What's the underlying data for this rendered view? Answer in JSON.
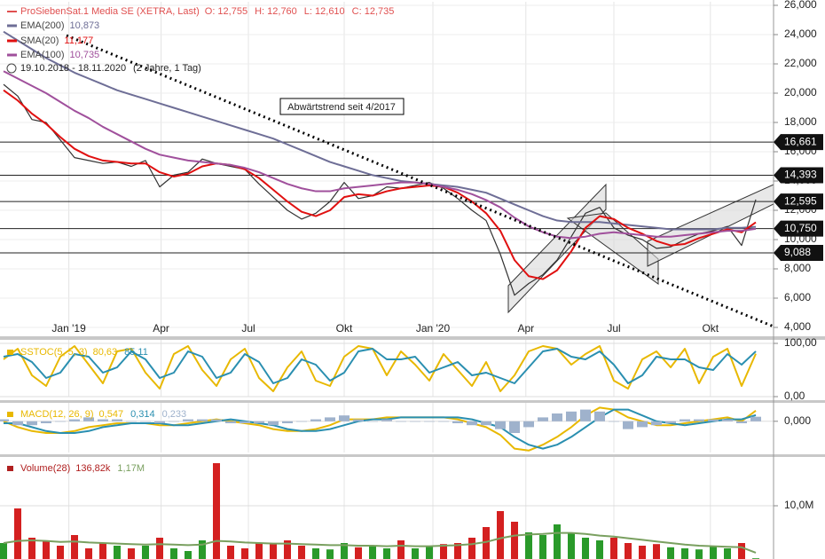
{
  "chart_data": [
    {
      "type": "line",
      "date_range": "19.10.2018 - 18.11.2020",
      "period": "(2 Jahre, 1 Tag)",
      "ohlc": [
        "O: 12,755",
        "H: 12,760",
        "L: 12,610",
        "C: 12,735"
      ],
      "annotation": "Abwärtstrend seit 4/2017",
      "ylim": [
        4,
        26
      ],
      "yticks": [
        {
          "value": 4,
          "label": "4,000"
        },
        {
          "value": 6,
          "label": "6,000"
        },
        {
          "value": 8,
          "label": "8,000"
        },
        {
          "value": 10,
          "label": "10,000"
        },
        {
          "value": 12,
          "label": "12,000"
        },
        {
          "value": 14,
          "label": "14,000"
        },
        {
          "value": 16,
          "label": "16,000"
        },
        {
          "value": 18,
          "label": "18,000"
        },
        {
          "value": 20,
          "label": "20,000"
        },
        {
          "value": 22,
          "label": "22,000"
        },
        {
          "value": 24,
          "label": "24,000"
        },
        {
          "value": 26,
          "label": "26,000"
        }
      ],
      "xticks": [
        {
          "value": 4.6,
          "label": "Jan '19"
        },
        {
          "value": 11.1,
          "label": "Apr"
        },
        {
          "value": 17.25,
          "label": "Jul"
        },
        {
          "value": 24,
          "label": "Okt"
        },
        {
          "value": 30.25,
          "label": "Jan '20"
        },
        {
          "value": 36.8,
          "label": "Apr"
        },
        {
          "value": 43,
          "label": "Jul"
        },
        {
          "value": 49.8,
          "label": "Okt"
        }
      ],
      "grid": true,
      "levels": [
        {
          "value": 16.661,
          "label": "16,661"
        },
        {
          "value": 14.393,
          "label": "14,393"
        },
        {
          "value": 12.595,
          "label": "12,595"
        },
        {
          "value": 10.75,
          "label": "10,750"
        },
        {
          "value": 9.088,
          "label": "9,088"
        }
      ],
      "series": [
        {
          "name": "ProSiebenSat.1 Media SE (XETRA, Last)",
          "color": "#333333",
          "values": [
            20.6,
            19.8,
            18.2,
            18.0,
            16.8,
            15.6,
            15.4,
            15.2,
            15.3,
            15.0,
            15.4,
            13.6,
            14.4,
            14.6,
            15.5,
            15.2,
            15.0,
            14.8,
            13.8,
            12.9,
            12.0,
            11.4,
            11.8,
            12.6,
            13.9,
            12.8,
            13.0,
            13.6,
            13.5,
            13.7,
            13.9,
            13.5,
            12.8,
            12.0,
            11.3,
            9.0,
            6.2,
            7.0,
            7.6,
            8.6,
            10.2,
            11.8,
            12.2,
            10.8,
            10.3,
            10.0,
            9.4,
            9.5,
            10.0,
            10.4,
            10.6,
            10.9,
            9.6,
            12.735
          ]
        },
        {
          "name": "EMA(200)",
          "last_label": "10,873",
          "color": "#6e6e96",
          "values": [
            24.2,
            23.6,
            23.0,
            22.4,
            21.9,
            21.4,
            21.0,
            20.6,
            20.2,
            19.9,
            19.6,
            19.3,
            19.0,
            18.7,
            18.4,
            18.1,
            17.8,
            17.5,
            17.2,
            16.9,
            16.5,
            16.1,
            15.7,
            15.3,
            15.0,
            14.7,
            14.4,
            14.2,
            14.0,
            13.9,
            13.8,
            13.7,
            13.6,
            13.4,
            13.2,
            12.8,
            12.4,
            12.0,
            11.6,
            11.3,
            11.2,
            11.2,
            11.2,
            11.1,
            11.0,
            10.9,
            10.8,
            10.7,
            10.7,
            10.7,
            10.7,
            10.8,
            10.8,
            10.873
          ]
        },
        {
          "name": "SMA(20)",
          "last_label": "11,177",
          "color": "#e01010",
          "values": [
            20.2,
            19.5,
            18.6,
            17.9,
            17.0,
            16.2,
            15.7,
            15.4,
            15.3,
            15.2,
            15.2,
            14.6,
            14.3,
            14.5,
            15.0,
            15.2,
            15.1,
            14.8,
            14.2,
            13.4,
            12.6,
            11.9,
            11.6,
            12.0,
            12.9,
            13.1,
            13.0,
            13.3,
            13.5,
            13.6,
            13.7,
            13.6,
            13.2,
            12.6,
            11.8,
            10.6,
            8.6,
            7.5,
            7.3,
            7.9,
            9.2,
            10.8,
            11.6,
            11.4,
            10.8,
            10.4,
            9.9,
            9.6,
            9.7,
            10.1,
            10.4,
            10.7,
            10.5,
            11.177
          ]
        },
        {
          "name": "EMA(100)",
          "last_label": "10,735",
          "color": "#a0509c",
          "values": [
            21.5,
            21.0,
            20.5,
            20.0,
            19.4,
            18.8,
            18.3,
            17.7,
            17.2,
            16.7,
            16.2,
            15.8,
            15.6,
            15.4,
            15.3,
            15.2,
            15.1,
            14.9,
            14.6,
            14.2,
            13.8,
            13.5,
            13.3,
            13.3,
            13.5,
            13.6,
            13.7,
            13.8,
            13.9,
            13.9,
            13.8,
            13.6,
            13.4,
            13.1,
            12.7,
            12.2,
            11.5,
            10.9,
            10.5,
            10.2,
            10.1,
            10.2,
            10.4,
            10.5,
            10.4,
            10.3,
            10.2,
            10.2,
            10.3,
            10.4,
            10.5,
            10.6,
            10.6,
            10.735
          ]
        }
      ]
    },
    {
      "type": "line",
      "ylim": [
        0,
        100
      ],
      "yticks": [
        {
          "value": 0,
          "label": "0,00"
        },
        {
          "value": 100,
          "label": "100,00"
        }
      ],
      "series": [
        {
          "name": "SSTOC(5, 5, 3)",
          "last_label": "80,63",
          "color": "#e8b800",
          "values": [
            70,
            90,
            40,
            20,
            75,
            95,
            60,
            25,
            85,
            90,
            45,
            15,
            80,
            95,
            50,
            20,
            70,
            90,
            35,
            10,
            55,
            85,
            30,
            20,
            75,
            95,
            90,
            40,
            85,
            60,
            30,
            80,
            50,
            20,
            65,
            10,
            40,
            85,
            95,
            90,
            60,
            80,
            95,
            30,
            15,
            70,
            85,
            55,
            90,
            25,
            75,
            90,
            20,
            80.63
          ]
        },
        {
          "last_label": "85,11",
          "color": "#2a8fb0",
          "values": [
            75,
            80,
            65,
            35,
            45,
            80,
            75,
            45,
            55,
            85,
            70,
            35,
            45,
            85,
            75,
            35,
            45,
            80,
            65,
            25,
            35,
            70,
            60,
            30,
            45,
            85,
            90,
            70,
            70,
            75,
            45,
            55,
            65,
            40,
            45,
            35,
            25,
            55,
            85,
            90,
            75,
            70,
            85,
            60,
            25,
            40,
            75,
            70,
            70,
            55,
            50,
            80,
            60,
            85.11
          ]
        }
      ]
    },
    {
      "type": "line",
      "ylim": [
        -1.6,
        0.9
      ],
      "yticks": [
        {
          "value": 0,
          "label": "0,000"
        }
      ],
      "series": [
        {
          "name": "MACD(12, 26, 9)",
          "last_label": "0,547",
          "color": "#e8b800",
          "values": [
            0.0,
            -0.3,
            -0.5,
            -0.6,
            -0.6,
            -0.5,
            -0.3,
            -0.2,
            -0.1,
            -0.1,
            -0.1,
            -0.2,
            -0.2,
            -0.1,
            0.0,
            0.1,
            0.0,
            -0.1,
            -0.2,
            -0.4,
            -0.5,
            -0.5,
            -0.4,
            -0.2,
            0.1,
            0.1,
            0.1,
            0.2,
            0.2,
            0.2,
            0.2,
            0.2,
            0.1,
            -0.1,
            -0.3,
            -0.7,
            -1.4,
            -1.5,
            -1.2,
            -0.8,
            -0.3,
            0.3,
            0.7,
            0.6,
            0.2,
            0.0,
            -0.2,
            -0.2,
            -0.1,
            0.0,
            0.1,
            0.2,
            0.0,
            0.547
          ]
        },
        {
          "last_label": "0,314",
          "color": "#2a8fb0",
          "values": [
            -0.1,
            -0.1,
            -0.3,
            -0.5,
            -0.6,
            -0.6,
            -0.5,
            -0.3,
            -0.2,
            -0.1,
            -0.1,
            -0.1,
            -0.2,
            -0.2,
            -0.1,
            0.0,
            0.1,
            0.0,
            -0.1,
            -0.2,
            -0.4,
            -0.5,
            -0.5,
            -0.4,
            -0.2,
            0.0,
            0.1,
            0.1,
            0.2,
            0.2,
            0.2,
            0.2,
            0.2,
            0.1,
            -0.1,
            -0.3,
            -0.8,
            -1.2,
            -1.4,
            -1.2,
            -0.8,
            -0.3,
            0.2,
            0.6,
            0.6,
            0.3,
            0.0,
            -0.1,
            -0.2,
            -0.1,
            0.0,
            0.1,
            0.1,
            0.314
          ]
        },
        {
          "type": "bar",
          "last_label": "0,233",
          "color": "#9fb2cc",
          "values": [
            0.1,
            -0.2,
            -0.2,
            -0.1,
            0,
            0.1,
            0.2,
            0.1,
            0.1,
            0,
            0,
            -0.1,
            0,
            0.1,
            0.1,
            0.1,
            -0.1,
            -0.1,
            -0.1,
            -0.2,
            -0.1,
            0,
            0.1,
            0.2,
            0.3,
            0.1,
            0,
            0.1,
            0,
            0,
            0,
            0,
            -0.1,
            -0.2,
            -0.2,
            -0.4,
            -0.6,
            -0.3,
            0.2,
            0.4,
            0.5,
            0.6,
            0.5,
            0,
            -0.4,
            -0.3,
            -0.2,
            -0.1,
            0.1,
            0.1,
            0.1,
            0.1,
            -0.1,
            0.233
          ]
        }
      ]
    },
    {
      "type": "bar",
      "ylim": [
        0,
        19000000
      ],
      "yticks": [
        {
          "value": 10000000,
          "label": "10,0M"
        }
      ],
      "up_color": "#2a9a2a",
      "down_color": "#d42020",
      "series": [
        {
          "name": "Volume(28)",
          "type": "bar",
          "last_label": "136,82k",
          "color": "#b02020",
          "values": [
            3000000,
            9500000,
            4000000,
            3500000,
            2500000,
            4500000,
            2000000,
            3000000,
            2500000,
            2000000,
            2500000,
            4000000,
            2000000,
            1500000,
            3500000,
            18000000,
            2500000,
            2000000,
            3000000,
            2800000,
            3500000,
            2500000,
            2000000,
            1800000,
            3000000,
            2200000,
            2500000,
            2000000,
            3500000,
            2000000,
            2500000,
            2800000,
            3000000,
            4000000,
            6000000,
            9000000,
            7000000,
            5000000,
            4500000,
            6500000,
            5000000,
            4000000,
            3500000,
            4000000,
            3000000,
            2500000,
            2800000,
            2200000,
            2000000,
            1800000,
            2500000,
            2000000,
            3000000,
            136820
          ]
        },
        {
          "type": "line",
          "last_label": "1,17M",
          "color": "#7aa060",
          "values": [
            3000000,
            3400000,
            3500000,
            3400000,
            3200000,
            3300000,
            3100000,
            3000000,
            2900000,
            2800000,
            2700000,
            2800000,
            2700000,
            2600000,
            2700000,
            3400000,
            3300000,
            3100000,
            3000000,
            2900000,
            2900000,
            2800000,
            2700000,
            2600000,
            2600000,
            2500000,
            2500000,
            2400000,
            2500000,
            2400000,
            2400000,
            2500000,
            2600000,
            2800000,
            3200000,
            3900000,
            4400000,
            4600000,
            4700000,
            4900000,
            4900000,
            4700000,
            4400000,
            4200000,
            3900000,
            3600000,
            3300000,
            3000000,
            2700000,
            2500000,
            2400000,
            2300000,
            2200000,
            1170000
          ]
        }
      ]
    }
  ]
}
